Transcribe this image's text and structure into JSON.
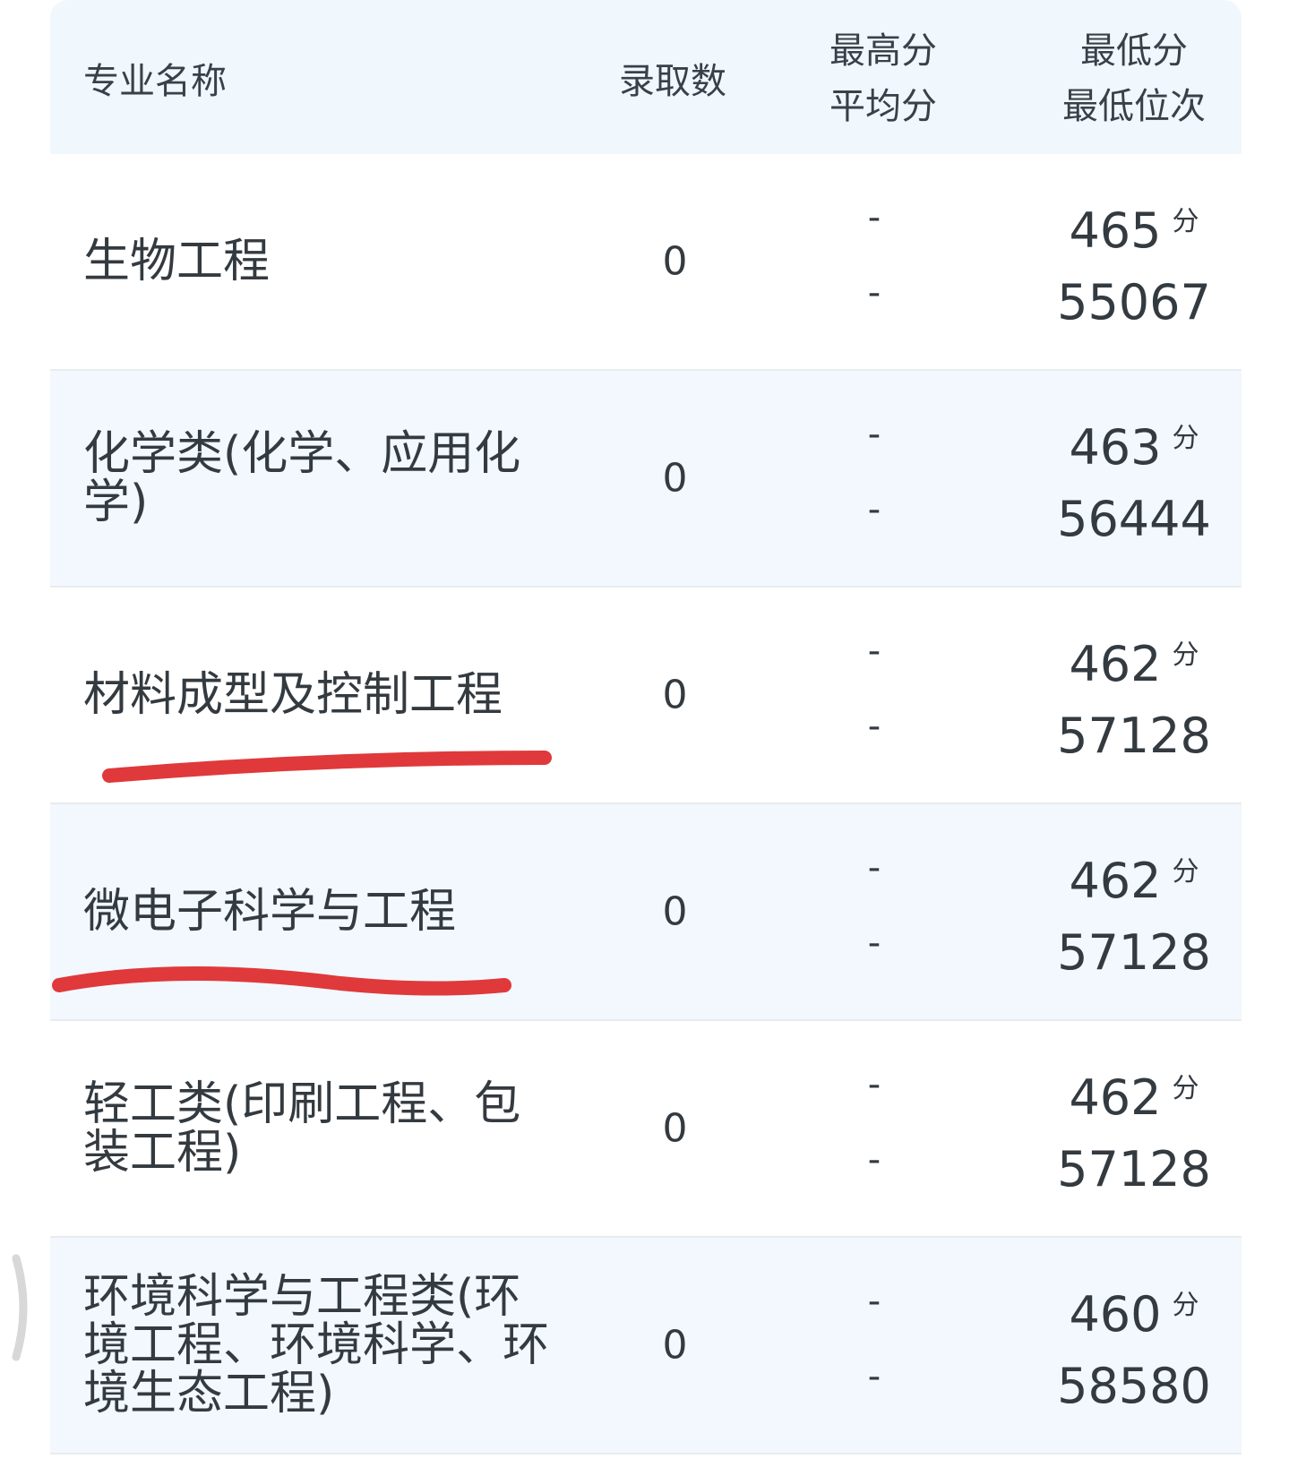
{
  "header": {
    "name": "专业名称",
    "count": "录取数",
    "max": "最高分",
    "avg": "平均分",
    "min": "最低分",
    "min_rank": "最低位次"
  },
  "unit": "分",
  "rows": [
    {
      "name": "生物工程",
      "count": "0",
      "max": "-",
      "avg": "-",
      "min": "465",
      "rank": "55067"
    },
    {
      "name": "化学类(化学、应用化学)",
      "count": "0",
      "max": "-",
      "avg": "-",
      "min": "463",
      "rank": "56444"
    },
    {
      "name": "材料成型及控制工程",
      "count": "0",
      "max": "-",
      "avg": "-",
      "min": "462",
      "rank": "57128",
      "underlined": true
    },
    {
      "name": "微电子科学与工程",
      "count": "0",
      "max": "-",
      "avg": "-",
      "min": "462",
      "rank": "57128",
      "underlined": true
    },
    {
      "name": "轻工类(印刷工程、包装工程)",
      "count": "0",
      "max": "-",
      "avg": "-",
      "min": "462",
      "rank": "57128"
    },
    {
      "name": "环境科学与工程类(环境工程、环境科学、环境生态工程)",
      "count": "0",
      "max": "-",
      "avg": "-",
      "min": "460",
      "rank": "58580"
    }
  ],
  "colors": {
    "header_bg": "#f0f7fd",
    "alt_row_bg": "#f2f8fd",
    "underline": "#e0393b"
  }
}
